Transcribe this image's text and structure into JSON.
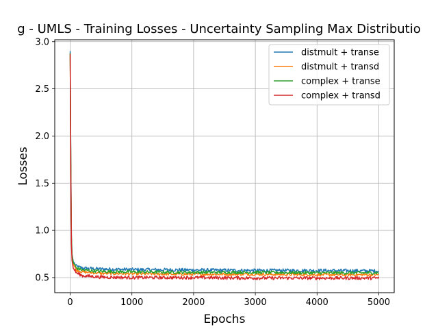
{
  "chart_data": {
    "type": "line",
    "title": "g - UMLS - Training Losses - Uncertainty Sampling Max Distributio",
    "xlabel": "Epochs",
    "ylabel": "Losses",
    "xlim": [
      -250,
      5250
    ],
    "ylim": [
      0.34,
      3.02
    ],
    "xticks": [
      0,
      1000,
      2000,
      3000,
      4000,
      5000
    ],
    "xtick_labels": [
      "0",
      "1000",
      "2000",
      "3000",
      "4000",
      "5000"
    ],
    "yticks": [
      0.5,
      1.0,
      1.5,
      2.0,
      2.5,
      3.0
    ],
    "ytick_labels": [
      "0.5",
      "1.0",
      "1.5",
      "2.0",
      "2.5",
      "3.0"
    ],
    "grid": true,
    "legend_position": "upper-right",
    "series": [
      {
        "name": "distmult + transe",
        "color": "#1f77b4",
        "x": [
          0,
          10,
          20,
          30,
          50,
          100,
          200,
          500,
          1000,
          2000,
          3000,
          4000,
          5000
        ],
        "y": [
          2.9,
          1.8,
          0.95,
          0.75,
          0.67,
          0.62,
          0.6,
          0.59,
          0.585,
          0.58,
          0.575,
          0.575,
          0.57
        ]
      },
      {
        "name": "distmult + transd",
        "color": "#ff7f0e",
        "x": [
          0,
          10,
          20,
          30,
          50,
          100,
          200,
          500,
          1000,
          2000,
          3000,
          4000,
          5000
        ],
        "y": [
          2.85,
          1.7,
          0.9,
          0.72,
          0.64,
          0.58,
          0.56,
          0.545,
          0.54,
          0.535,
          0.535,
          0.53,
          0.53
        ]
      },
      {
        "name": "complex + transe",
        "color": "#2ca02c",
        "x": [
          0,
          10,
          20,
          30,
          50,
          100,
          200,
          500,
          1000,
          2000,
          3000,
          4000,
          5000
        ],
        "y": [
          2.88,
          1.75,
          0.92,
          0.74,
          0.66,
          0.6,
          0.58,
          0.565,
          0.56,
          0.555,
          0.555,
          0.55,
          0.55
        ]
      },
      {
        "name": "complex + transd",
        "color": "#d62728",
        "x": [
          0,
          10,
          20,
          30,
          50,
          100,
          200,
          500,
          1000,
          2000,
          3000,
          4000,
          5000
        ],
        "y": [
          2.87,
          1.65,
          0.85,
          0.68,
          0.6,
          0.55,
          0.52,
          0.505,
          0.5,
          0.5,
          0.495,
          0.495,
          0.495
        ]
      }
    ]
  }
}
